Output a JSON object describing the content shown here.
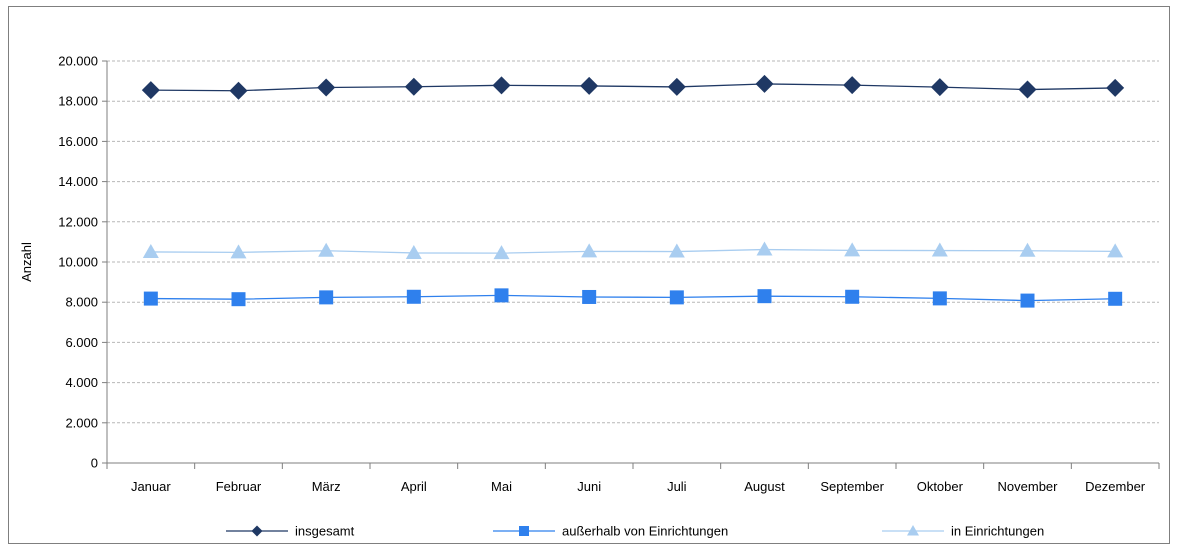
{
  "chart_data": {
    "type": "line",
    "ylabel": "Anzahl",
    "xlabel": "",
    "categories": [
      "Januar",
      "Februar",
      "März",
      "April",
      "Mai",
      "Juni",
      "Juli",
      "August",
      "September",
      "Oktober",
      "November",
      "Dezember"
    ],
    "ylim": [
      0,
      20000
    ],
    "yticks": [
      0,
      2000,
      4000,
      6000,
      8000,
      10000,
      12000,
      14000,
      16000,
      18000,
      20000
    ],
    "ytick_labels": [
      "0",
      "2.000",
      "4.000",
      "6.000",
      "8.000",
      "10.000",
      "12.000",
      "14.000",
      "16.000",
      "18.000",
      "20.000"
    ],
    "grid": true,
    "legend_position": "bottom",
    "series": [
      {
        "name": "insgesamt",
        "marker": "diamond",
        "color": "#1f3864",
        "values": [
          18550,
          18520,
          18680,
          18720,
          18790,
          18760,
          18710,
          18860,
          18800,
          18700,
          18580,
          18660
        ]
      },
      {
        "name": "außerhalb von Einrichtungen",
        "marker": "square",
        "color": "#2f80ed",
        "values": [
          8180,
          8150,
          8240,
          8270,
          8340,
          8260,
          8240,
          8300,
          8270,
          8190,
          8080,
          8170
        ]
      },
      {
        "name": "in Einrichtungen",
        "marker": "triangle",
        "color": "#a9cdf0",
        "values": [
          10500,
          10480,
          10560,
          10450,
          10440,
          10530,
          10520,
          10620,
          10580,
          10570,
          10560,
          10530
        ]
      }
    ]
  }
}
